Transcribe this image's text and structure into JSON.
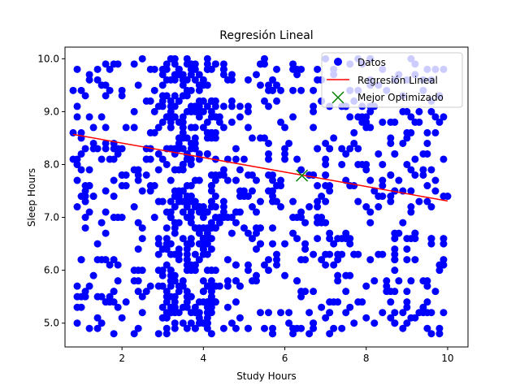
{
  "chart_data": {
    "type": "scatter",
    "title": "Regresión Lineal",
    "xlabel": "Study Hours",
    "ylabel": "Sleep Hours",
    "xlim": [
      0.6,
      10.5
    ],
    "ylim": [
      4.55,
      10.22
    ],
    "xticks": [
      2,
      4,
      6,
      8,
      10
    ],
    "yticks": [
      5,
      6,
      7,
      8,
      9,
      10
    ],
    "grid": false,
    "legend_position": "top-right",
    "legend": [
      "Datos",
      "Regresión Lineal",
      "Mejor Optimizado"
    ],
    "colors": {
      "scatter": "#0000ff",
      "line": "#ff0000",
      "best": "#008000"
    },
    "scatter_generator": {
      "count": 1000,
      "x_range": [
        0.8,
        10.0
      ],
      "y_range": [
        4.8,
        10.0
      ],
      "dense_x_range": [
        3.0,
        4.3
      ],
      "dense_fraction": 0.3
    },
    "regression_line": {
      "x": [
        0.8,
        10.0
      ],
      "y": [
        8.57,
        7.31
      ]
    },
    "best_point": {
      "x": 6.42,
      "y": 7.79
    }
  }
}
